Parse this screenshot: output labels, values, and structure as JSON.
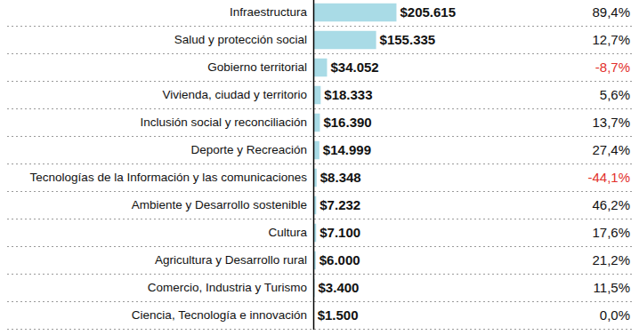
{
  "chart_data": {
    "type": "bar",
    "orientation": "horizontal",
    "categories": [
      "Infraestructura",
      "Salud y protección social",
      "Gobierno territorial",
      "Vivienda, ciudad y territorio",
      "Inclusión social y reconciliación",
      "Deporte y Recreación",
      "Tecnologías de la Información y las comunicaciones",
      "Ambiente y Desarrollo sostenible",
      "Cultura",
      "Agricultura y Desarrollo rural",
      "Comercio, Industria y Turismo",
      "Ciencia, Tecnología e innovación"
    ],
    "values": [
      205615,
      155335,
      34052,
      18333,
      16390,
      14999,
      8348,
      7232,
      7100,
      6000,
      3400,
      1500
    ],
    "value_labels": [
      "$205.615",
      "$155.335",
      "$34.052",
      "$18.333",
      "$16.390",
      "$14.999",
      "$8.348",
      "$7.232",
      "$7.100",
      "$6.000",
      "$3.400",
      "$1.500"
    ],
    "changes": [
      89.4,
      12.7,
      -8.7,
      5.6,
      13.7,
      27.4,
      -44.1,
      46.2,
      17.6,
      21.2,
      11.5,
      0.0
    ],
    "change_labels": [
      "89,4%",
      "12,7%",
      "-8,7%",
      "5,6%",
      "13,7%",
      "27,4%",
      "-44,1%",
      "46,2%",
      "17,6%",
      "21,2%",
      "11,5%",
      "0,0%"
    ],
    "color": "#a9dbe6",
    "xlim": [
      0,
      220000
    ],
    "data_labels": true,
    "tick_labels": "y",
    "grid": false
  }
}
